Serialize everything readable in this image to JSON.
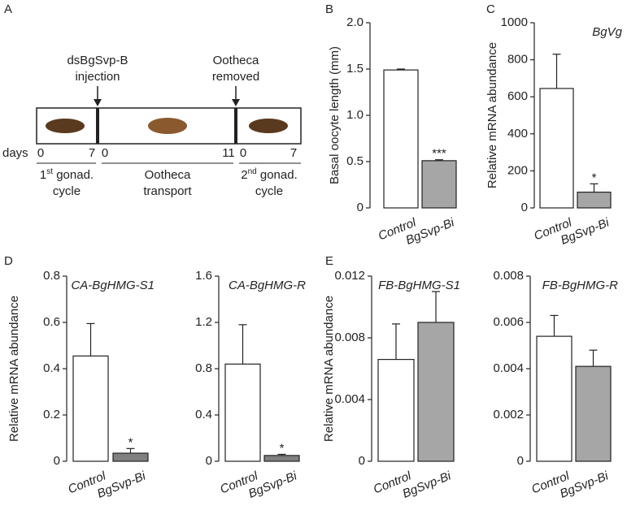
{
  "panel_labels": [
    "A",
    "B",
    "C",
    "D",
    "E"
  ],
  "diagram": {
    "events": [
      {
        "line1": "dsBgSvp-B",
        "line2": "injection"
      },
      {
        "line1": "Ootheca",
        "line2": "removed"
      }
    ],
    "days_label": "days",
    "days": [
      "0",
      "7",
      "0",
      "11",
      "0",
      "7"
    ],
    "phases": [
      {
        "num": "1",
        "sup": "st",
        "rest": " gonad.",
        "line2": "cycle"
      },
      {
        "num": "",
        "sup": "",
        "rest": "Ootheca",
        "line2": "transport"
      },
      {
        "num": "2",
        "sup": "nd",
        "rest": " gonad.",
        "line2": "cycle"
      }
    ]
  },
  "chart_data": [
    {
      "type": "bar",
      "y_label": "Basal oocyte length (mm)",
      "categories": [
        "Control",
        "BgSvp-Bi"
      ],
      "values": [
        1.49,
        0.51
      ],
      "errors": [
        0.01,
        0.01
      ],
      "significance": [
        null,
        "***"
      ],
      "colors": [
        "#ffffff",
        "#a6a6a6"
      ],
      "ylim": [
        0,
        2.0
      ],
      "yticks": [
        0,
        0.5,
        {
          "value": 1.0,
          "label": "1.0"
        },
        1.5,
        {
          "value": 2.0,
          "label": "2.0"
        }
      ]
    },
    {
      "type": "bar",
      "y_label": "Relative mRNA abundance",
      "annotation": "BgVg",
      "categories": [
        "Control",
        "BgSvp-Bi"
      ],
      "values": [
        645,
        85
      ],
      "errors": [
        185,
        45
      ],
      "significance": [
        null,
        "*"
      ],
      "colors": [
        "#ffffff",
        "#a6a6a6"
      ],
      "ylim": [
        0,
        1000
      ],
      "yticks": [
        0,
        200,
        400,
        600,
        800,
        1000
      ]
    },
    {
      "type": "bar",
      "y_label": "Relative mRNA abundance",
      "annotation": "CA-BgHMG-S1",
      "categories": [
        "Control",
        "BgSvp-Bi"
      ],
      "values": [
        0.455,
        0.035
      ],
      "errors": [
        0.14,
        0.02
      ],
      "significance": [
        null,
        "*"
      ],
      "colors": [
        "#ffffff",
        "#808080"
      ],
      "ylim": [
        0,
        0.8
      ],
      "yticks": [
        0,
        0.2,
        0.4,
        0.6,
        0.8
      ]
    },
    {
      "type": "bar",
      "annotation": "CA-BgHMG-R",
      "categories": [
        "Control",
        "BgSvp-Bi"
      ],
      "values": [
        0.84,
        0.05
      ],
      "errors": [
        0.34,
        0.01
      ],
      "significance": [
        null,
        "*"
      ],
      "colors": [
        "#ffffff",
        "#808080"
      ],
      "ylim": [
        0,
        1.6
      ],
      "yticks": [
        0,
        0.4,
        0.8,
        1.2,
        1.6
      ]
    },
    {
      "type": "bar",
      "y_label": "Relative mRNA abundance",
      "annotation": "FB-BgHMG-S1",
      "categories": [
        "Control",
        "BgSvp-Bi"
      ],
      "values": [
        0.0066,
        0.009
      ],
      "errors": [
        0.0023,
        0.002
      ],
      "significance": [
        null,
        null
      ],
      "colors": [
        "#ffffff",
        "#a6a6a6"
      ],
      "ylim": [
        0,
        0.012
      ],
      "yticks": [
        0,
        0.004,
        0.008,
        0.012
      ]
    },
    {
      "type": "bar",
      "annotation": "FB-BgHMG-R",
      "categories": [
        "Control",
        "BgSvp-Bi"
      ],
      "values": [
        0.0054,
        0.0041
      ],
      "errors": [
        0.0009,
        0.0007
      ],
      "significance": [
        null,
        null
      ],
      "colors": [
        "#ffffff",
        "#a6a6a6"
      ],
      "ylim": [
        0,
        0.008
      ],
      "yticks": [
        0,
        0.002,
        0.004,
        0.006,
        0.008
      ]
    }
  ]
}
